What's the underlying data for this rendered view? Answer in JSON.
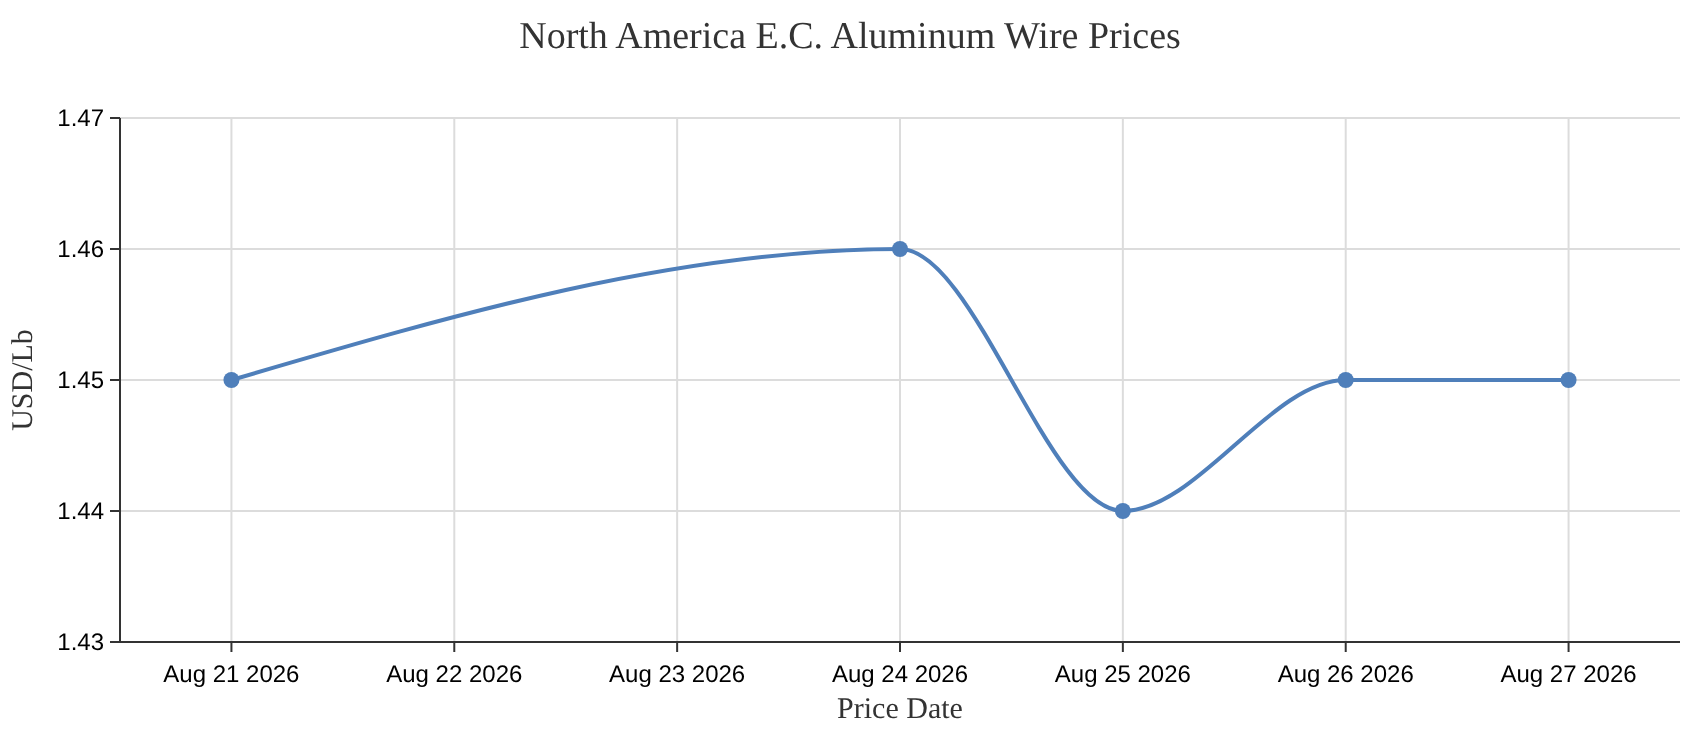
{
  "chart_data": {
    "type": "line",
    "title": "North America E.C. Aluminum Wire Prices",
    "xlabel": "Price Date",
    "ylabel": "USD/Lb",
    "x": [
      "2026-08-21",
      "2026-08-24",
      "2026-08-25",
      "2026-08-26",
      "2026-08-27"
    ],
    "series": [
      {
        "color": "#4f7fba",
        "values": [
          1.45,
          1.46,
          1.44,
          1.45,
          1.45
        ]
      }
    ],
    "xlim": [
      "2026-08-20T12:00",
      "2026-08-27T12:00"
    ],
    "xticks": [
      {
        "value": "2026-08-21",
        "label": "Aug 21 2026"
      },
      {
        "value": "2026-08-22",
        "label": "Aug 22 2026"
      },
      {
        "value": "2026-08-23",
        "label": "Aug 23 2026"
      },
      {
        "value": "2026-08-24",
        "label": "Aug 24 2026"
      },
      {
        "value": "2026-08-25",
        "label": "Aug 25 2026"
      },
      {
        "value": "2026-08-26",
        "label": "Aug 26 2026"
      },
      {
        "value": "2026-08-27",
        "label": "Aug 27 2026"
      }
    ],
    "ylim": [
      1.43,
      1.47
    ],
    "yticks": [
      1.43,
      1.44,
      1.45,
      1.46,
      1.47
    ],
    "grid": true,
    "marker": "circle",
    "line_style": "solid"
  }
}
